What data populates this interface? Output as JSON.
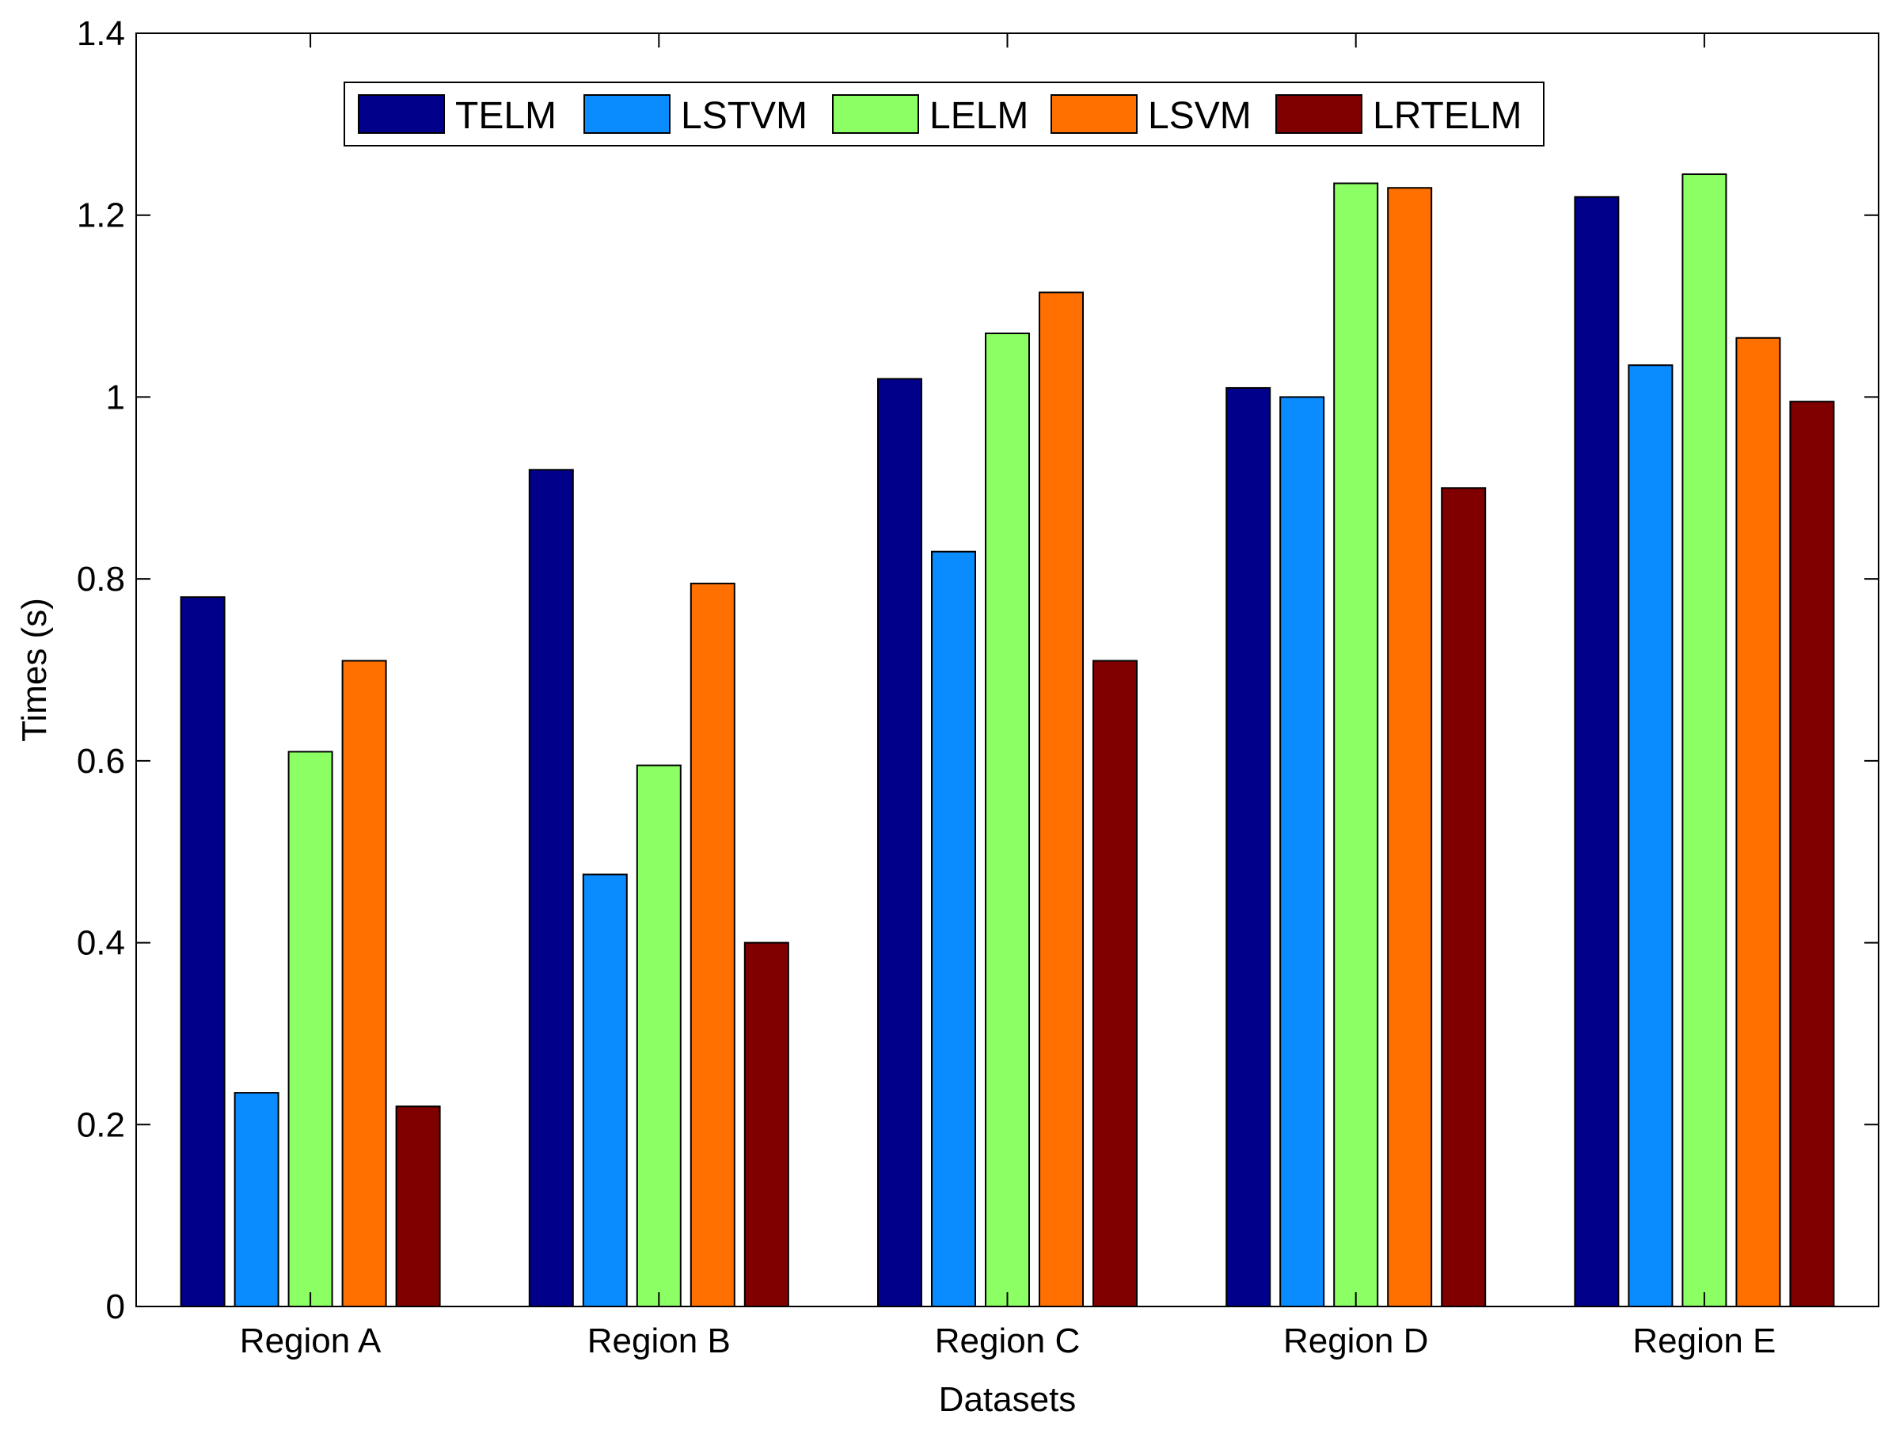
{
  "chart_data": {
    "type": "bar",
    "title": "",
    "xlabel": "Datasets",
    "ylabel": "Times (s)",
    "ylim": [
      0,
      1.4
    ],
    "yticks": [
      "0",
      "0.2",
      "0.4",
      "0.6",
      "0.8",
      "1",
      "1.2",
      "1.4"
    ],
    "categories": [
      "Region A",
      "Region B",
      "Region C",
      "Region D",
      "Region E"
    ],
    "legend_position": "top-center",
    "grid": false,
    "series": [
      {
        "name": "TELM",
        "color": "#00008b",
        "values": [
          0.78,
          0.92,
          1.02,
          1.01,
          1.22
        ]
      },
      {
        "name": "LSTVM",
        "color": "#0a8cff",
        "values": [
          0.235,
          0.475,
          0.83,
          1.0,
          1.035
        ]
      },
      {
        "name": "LELM",
        "color": "#8cff64",
        "values": [
          0.61,
          0.595,
          1.07,
          1.235,
          1.245
        ]
      },
      {
        "name": "LSVM",
        "color": "#ff7000",
        "values": [
          0.71,
          0.795,
          1.115,
          1.23,
          1.065
        ]
      },
      {
        "name": "LRTELM",
        "color": "#800000",
        "values": [
          0.22,
          0.4,
          0.71,
          0.9,
          0.995
        ]
      }
    ]
  }
}
